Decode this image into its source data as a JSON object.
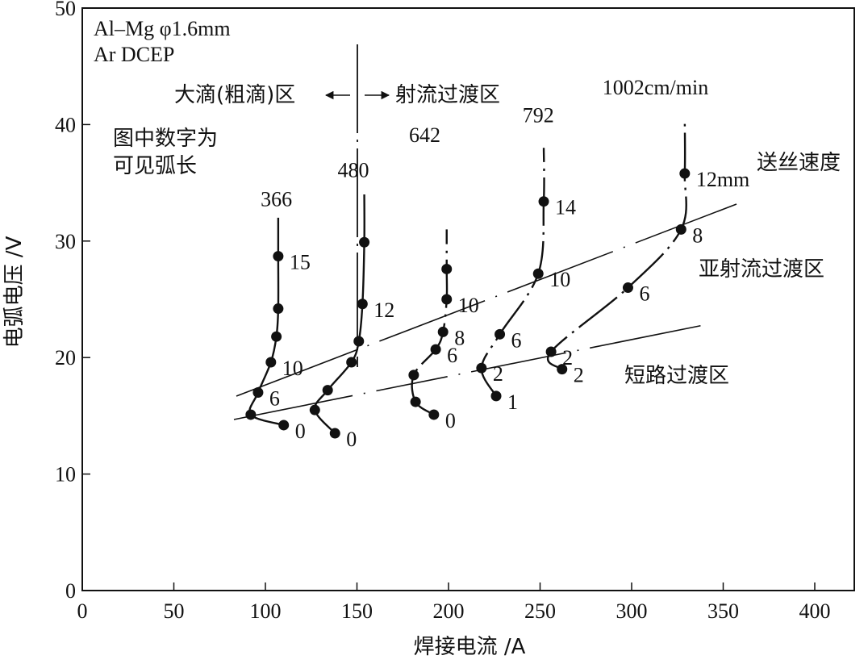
{
  "chart_data": {
    "type": "line",
    "xlabel": "焊接电流 /A",
    "ylabel": "电弧电压 /V",
    "xlim": [
      0,
      420
    ],
    "ylim": [
      0,
      50
    ],
    "xticks": [
      0,
      50,
      100,
      150,
      200,
      250,
      300,
      350,
      400
    ],
    "yticks": [
      0,
      10,
      20,
      30,
      40,
      50
    ],
    "info_lines": [
      "Al–Mg φ1.6mm",
      "Ar  DCEP"
    ],
    "note_lines": [
      "图中数字为",
      "可见弧长"
    ],
    "region_labels": {
      "globular": "大滴(粗滴)区",
      "spray": "射流过渡区",
      "subspray": "亚射流过渡区",
      "short_circuit": "短路过渡区",
      "wire_feed": "送丝速度"
    },
    "arrows": {
      "left": "←",
      "right": "→"
    },
    "series": [
      {
        "name": "366",
        "points": [
          {
            "x": 110,
            "y": 14.2,
            "label": "0"
          },
          {
            "x": 92,
            "y": 15.1,
            "label": ""
          },
          {
            "x": 96,
            "y": 17.0,
            "label": "6"
          },
          {
            "x": 103,
            "y": 19.6,
            "label": "10"
          },
          {
            "x": 106,
            "y": 21.8,
            "label": ""
          },
          {
            "x": 107,
            "y": 24.2,
            "label": ""
          },
          {
            "x": 107,
            "y": 28.7,
            "label": "15"
          }
        ],
        "top_y": 32,
        "label_xy": [
          106,
          33
        ]
      },
      {
        "name": "480",
        "points": [
          {
            "x": 138,
            "y": 13.5,
            "label": "0"
          },
          {
            "x": 127,
            "y": 15.5,
            "label": ""
          },
          {
            "x": 134,
            "y": 17.2,
            "label": ""
          },
          {
            "x": 147,
            "y": 19.6,
            "label": ""
          },
          {
            "x": 151,
            "y": 21.4,
            "label": ""
          },
          {
            "x": 153,
            "y": 24.6,
            "label": "12"
          },
          {
            "x": 154,
            "y": 29.9,
            "label": ""
          }
        ],
        "top_y": 34,
        "label_xy": [
          148,
          35.5
        ]
      },
      {
        "name": "642",
        "points": [
          {
            "x": 192,
            "y": 15.1,
            "label": "0"
          },
          {
            "x": 182,
            "y": 16.2,
            "label": ""
          },
          {
            "x": 181,
            "y": 18.5,
            "label": ""
          },
          {
            "x": 193,
            "y": 20.7,
            "label": "6"
          },
          {
            "x": 197,
            "y": 22.2,
            "label": "8"
          },
          {
            "x": 199,
            "y": 25.0,
            "label": "10"
          },
          {
            "x": 199,
            "y": 27.6,
            "label": ""
          }
        ],
        "top_y": 31,
        "label_xy": [
          187,
          38.5
        ]
      },
      {
        "name": "792",
        "points": [
          {
            "x": 226,
            "y": 16.7,
            "label": "1"
          },
          {
            "x": 218,
            "y": 19.1,
            "label": "2"
          },
          {
            "x": 228,
            "y": 22.0,
            "label": "6"
          },
          {
            "x": 249,
            "y": 27.2,
            "label": "10"
          },
          {
            "x": 252,
            "y": 33.4,
            "label": "14"
          }
        ],
        "top_y": 38,
        "label_xy": [
          249,
          40.2
        ]
      },
      {
        "name": "1002cm/min",
        "points": [
          {
            "x": 262,
            "y": 19.0,
            "label": "2"
          },
          {
            "x": 256,
            "y": 20.5,
            "label": "2"
          },
          {
            "x": 298,
            "y": 26.0,
            "label": "6"
          },
          {
            "x": 327,
            "y": 31.0,
            "label": "8"
          },
          {
            "x": 329,
            "y": 35.8,
            "label": "12mm"
          }
        ],
        "top_y": 40.5,
        "label_xy": [
          313,
          42.6
        ]
      }
    ]
  }
}
